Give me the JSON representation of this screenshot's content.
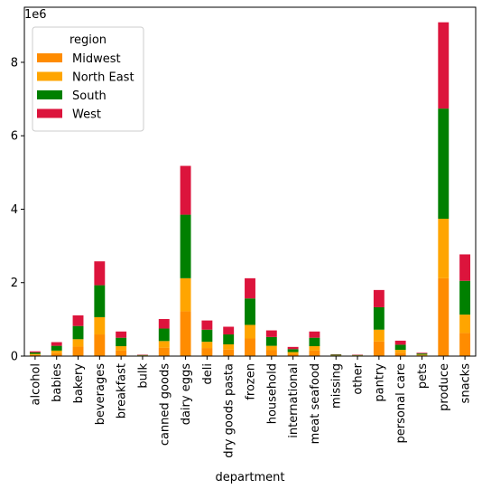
{
  "chart_data": {
    "type": "bar",
    "stacked": true,
    "title": "",
    "xlabel": "department",
    "ylabel": "",
    "y_scale_label": "1e6",
    "ylim": [
      0,
      9.5
    ],
    "yticks": [
      0,
      2,
      4,
      6,
      8
    ],
    "grid": false,
    "legend": {
      "title": "region",
      "position": "top-left"
    },
    "categories": [
      "alcohol",
      "babies",
      "bakery",
      "beverages",
      "breakfast",
      "bulk",
      "canned goods",
      "dairy eggs",
      "deli",
      "dry goods pasta",
      "frozen",
      "household",
      "international",
      "meat seafood",
      "missing",
      "other",
      "pantry",
      "personal care",
      "pets",
      "produce",
      "snacks"
    ],
    "series": [
      {
        "name": "Midwest",
        "color": "#ff8c00",
        "values": [
          0.03,
          0.08,
          0.26,
          0.59,
          0.15,
          0.01,
          0.23,
          1.22,
          0.22,
          0.18,
          0.48,
          0.16,
          0.06,
          0.15,
          0.01,
          0.01,
          0.4,
          0.09,
          0.02,
          2.12,
          0.63
        ]
      },
      {
        "name": "North East",
        "color": "#ffa500",
        "values": [
          0.03,
          0.07,
          0.2,
          0.47,
          0.12,
          0.01,
          0.18,
          0.9,
          0.17,
          0.14,
          0.37,
          0.12,
          0.05,
          0.12,
          0.01,
          0.01,
          0.32,
          0.08,
          0.02,
          1.62,
          0.5
        ]
      },
      {
        "name": "South",
        "color": "#008000",
        "values": [
          0.04,
          0.13,
          0.36,
          0.87,
          0.23,
          0.01,
          0.34,
          1.73,
          0.33,
          0.27,
          0.72,
          0.24,
          0.08,
          0.23,
          0.02,
          0.01,
          0.61,
          0.14,
          0.03,
          3.0,
          0.92
        ]
      },
      {
        "name": "West",
        "color": "#dc143c",
        "values": [
          0.03,
          0.1,
          0.29,
          0.65,
          0.17,
          0.01,
          0.26,
          1.33,
          0.25,
          0.21,
          0.55,
          0.18,
          0.06,
          0.17,
          0.01,
          0.01,
          0.47,
          0.11,
          0.02,
          2.35,
          0.72
        ]
      }
    ]
  }
}
